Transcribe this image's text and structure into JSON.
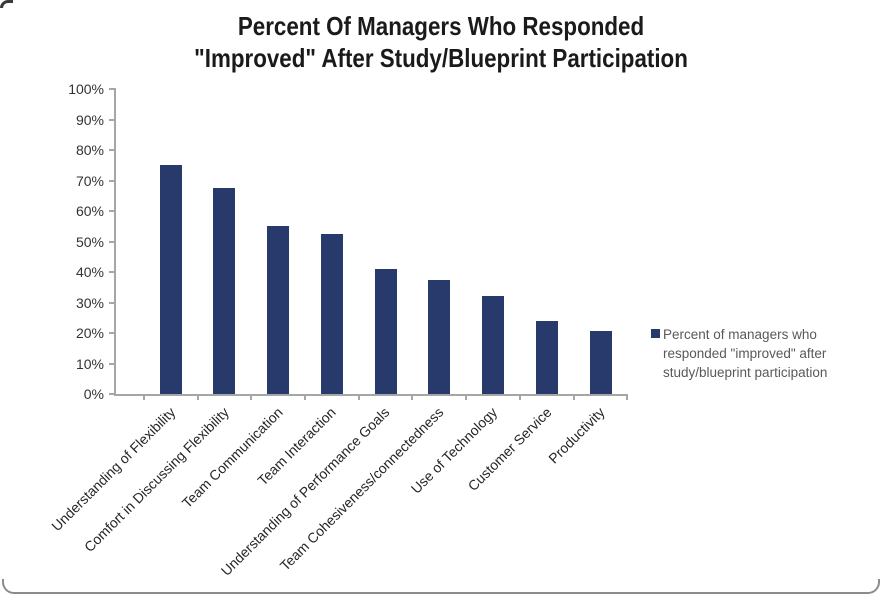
{
  "title": {
    "line1": "Percent Of Managers Who Responded",
    "line2": "\"Improved\" After Study/Blueprint Participation"
  },
  "legend": {
    "label": "Percent of managers who responded \"improved\" after study/blueprint participation"
  },
  "colors": {
    "bar": "#28396B",
    "axis_line": "#A6A6A6",
    "axis_text": "#333333",
    "x_label_text": "#262626",
    "legend_text": "#595959",
    "title_text": "#1A1A1A",
    "frame_border": "#8C8C8C"
  },
  "chart_data": {
    "type": "bar",
    "title": "Percent Of Managers Who Responded \"Improved\" After Study/Blueprint Participation",
    "categories": [
      "Understanding of Flexibility",
      "Comfort in Discussing Flexibility",
      "Team Communication",
      "Team Interaction",
      "Understanding of Performance Goals",
      "Team Cohesiveness/connectedness",
      "Use of Technology",
      "Customer Service",
      "Productivity"
    ],
    "values": [
      75,
      67.5,
      55,
      52.5,
      41,
      37.5,
      32,
      24,
      20.5
    ],
    "series_name": "Percent of managers who responded \"improved\" after study/blueprint participation",
    "xlabel": "",
    "ylabel": "",
    "ylim": [
      0,
      100
    ],
    "y_tick_step": 10,
    "y_tick_labels": [
      "0%",
      "10%",
      "20%",
      "30%",
      "40%",
      "50%",
      "60%",
      "70%",
      "80%",
      "90%",
      "100%"
    ],
    "grid": false,
    "legend_position": "right",
    "bar_color": "#28396B"
  }
}
